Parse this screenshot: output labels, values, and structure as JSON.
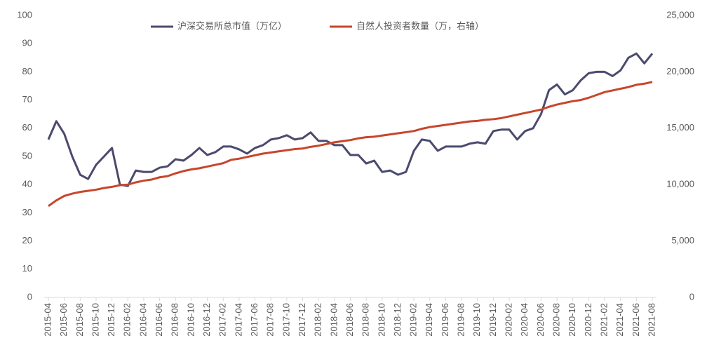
{
  "chart_data": {
    "type": "line",
    "categories": [
      "2015-04",
      null,
      "2015-06",
      null,
      "2015-08",
      null,
      "2015-10",
      null,
      "2015-12",
      null,
      "2016-02",
      null,
      "2016-04",
      null,
      "2016-06",
      null,
      "2016-08",
      null,
      "2016-10",
      null,
      "2016-12",
      null,
      "2017-02",
      null,
      "2017-04",
      null,
      "2017-06",
      null,
      "2017-08",
      null,
      "2017-10",
      null,
      "2017-12",
      null,
      "2018-02",
      null,
      "2018-04",
      null,
      "2018-06",
      null,
      "2018-08",
      null,
      "2018-10",
      null,
      "2018-12",
      null,
      "2019-02",
      null,
      "2019-04",
      null,
      "2019-06",
      null,
      "2019-08",
      null,
      "2019-10",
      null,
      "2019-12",
      null,
      "2020-02",
      null,
      "2020-04",
      null,
      "2020-06",
      null,
      "2020-08",
      null,
      "2020-10",
      null,
      "2020-12",
      null,
      "2021-02",
      null,
      "2021-04",
      null,
      "2021-06",
      null,
      "2021-08"
    ],
    "series": [
      {
        "name": "沪深交易所总市值（万亿）",
        "color": "#4b4a6e",
        "values": [
          56,
          62.5,
          58,
          50,
          43.5,
          42,
          47,
          50,
          53,
          40,
          39.5,
          45,
          44.5,
          44.5,
          46,
          46.5,
          49,
          48.5,
          50.5,
          53,
          50.5,
          51.5,
          53.5,
          53.5,
          52.5,
          51,
          53,
          54,
          56,
          56.5,
          57.5,
          56,
          56.5,
          58.5,
          55.5,
          55.5,
          54,
          54,
          50.5,
          50.5,
          47.5,
          48.5,
          44.5,
          45,
          43.5,
          44.5,
          52,
          56,
          55.5,
          52,
          53.5,
          53.5,
          53.5,
          54.5,
          55,
          54.5,
          59,
          59.5,
          59.5,
          56,
          59,
          60,
          65,
          73.5,
          75.5,
          72,
          73.5,
          77,
          79.5,
          80,
          80,
          78.5,
          80.5,
          85,
          86.5,
          83,
          86.5
        ]
      },
      {
        "name": "自然人投资者数量（万，右轴）",
        "color": "#c7462b",
        "axis": "y2",
        "values": [
          8100,
          8600,
          9000,
          9200,
          9350,
          9450,
          9550,
          9700,
          9800,
          9950,
          10000,
          10200,
          10350,
          10450,
          10650,
          10750,
          11000,
          11200,
          11350,
          11450,
          11600,
          11750,
          11900,
          12200,
          12300,
          12450,
          12600,
          12750,
          12850,
          12950,
          13050,
          13150,
          13200,
          13350,
          13450,
          13600,
          13750,
          13850,
          13950,
          14100,
          14200,
          14250,
          14350,
          14450,
          14550,
          14650,
          14750,
          14950,
          15100,
          15200,
          15300,
          15400,
          15500,
          15600,
          15650,
          15750,
          15800,
          15900,
          16050,
          16200,
          16350,
          16500,
          16650,
          16900,
          17100,
          17250,
          17400,
          17500,
          17700,
          17950,
          18200,
          18350,
          18500,
          18650,
          18850,
          18950,
          19100
        ]
      }
    ],
    "ylim": [
      0,
      100
    ],
    "yticks": [
      0,
      10,
      20,
      30,
      40,
      50,
      60,
      70,
      80,
      90,
      100
    ],
    "y2lim": [
      0,
      25000
    ],
    "y2ticks": [
      0,
      {
        "value": 5000,
        "label": "5,000"
      },
      {
        "value": 10000,
        "label": "10,000"
      },
      {
        "value": 15000,
        "label": "15,000"
      },
      {
        "value": 20000,
        "label": "20,000"
      },
      {
        "value": 25000,
        "label": "25,000"
      }
    ]
  }
}
